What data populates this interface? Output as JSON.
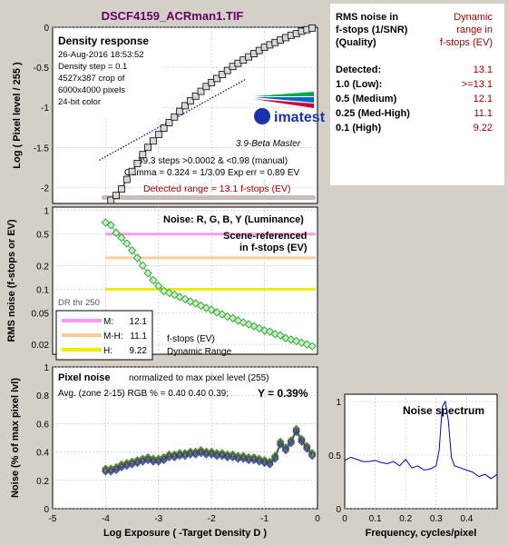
{
  "header": {
    "title": "DSCF4159_ACRman1.TIF"
  },
  "colors": {
    "background": "#d4d0c8",
    "title": "#660066",
    "maroon": "#990000",
    "blue": "#0000cc",
    "pink": "#ff99ee",
    "peach": "#ffcc99",
    "yellow": "#eeee00",
    "green": "#33aa33",
    "scene_line": "#44aa88",
    "detected_band": "#ccbbbb"
  },
  "summary_panel": {
    "left_heading": [
      "RMS noise in",
      "f-stops (1/SNR)",
      "(Quality)"
    ],
    "right_heading": [
      "Dynamic",
      "range in",
      "f-stops (EV)"
    ],
    "rows": [
      {
        "label": "Detected:",
        "value": "13.1"
      },
      {
        "label": "1.0  (Low):",
        "value": ">=13.1"
      },
      {
        "label": "0.5  (Medium)",
        "value": "12.1"
      },
      {
        "label": "0.25 (Med-High)",
        "value": "11.1"
      },
      {
        "label": "0.1  (High)",
        "value": "9.22"
      }
    ]
  },
  "density_chart": {
    "box_title": "Density response",
    "info_lines": [
      "26-Aug-2016 18:53:52",
      "Density step = 0.1",
      "4527x387 crop of",
      "6000x4000 pixels",
      "24-bit color"
    ],
    "logo_text": "imatest",
    "version": "3.9-Beta  Master",
    "stats_line1": "39.3 steps >0.0002 & <0.98 (manual)",
    "stats_line2": "Gamma = 0.324 = 1/3.09  Exp err = 0.89 EV",
    "detected_label": "Detected range = 13.1 f-stops (EV)",
    "ylabel": "Log ( Pixel level / 255 )",
    "yticks": [
      "0",
      "-0.5",
      "-1",
      "-1.5",
      "-2"
    ],
    "type": "line"
  },
  "noise_chart": {
    "box_title": "Noise: R, G, B, Y (Luminance)",
    "scene_label_1": "Scene-referenced",
    "scene_label_2": "in f-stops (EV)",
    "ylabel": "RMS noise (f-stops or EV)",
    "yticks": [
      "1",
      "0.5",
      "0.2",
      "0.1",
      "0.05",
      "0.02"
    ],
    "dr_thr": "DR thr 250",
    "legend": [
      {
        "key": "M:",
        "value": "12.1"
      },
      {
        "key": "M-H:",
        "value": "11.1"
      },
      {
        "key": "H:",
        "value": "9.22"
      }
    ],
    "legend_note_1": "f-stops (EV)",
    "legend_note_2": "Dynamic Range",
    "type": "line"
  },
  "pixel_chart": {
    "box_title": "Pixel noise",
    "note": "normalized to max pixel level (255)",
    "avg_line": "Avg. (zone 2-15) RGB % = 0.40  0.40  0.39;",
    "y_value": "Y = 0.39%",
    "ylabel": "Noise (% of max pixel lvl)",
    "xlabel": "Log Exposure ( -Target Density D )",
    "xticks": [
      "-5",
      "-4",
      "-3",
      "-2",
      "-1",
      "0"
    ],
    "yticks": [
      "0",
      "0.2",
      "0.4",
      "0.6",
      "0.8",
      "1"
    ],
    "type": "line"
  },
  "spectrum_chart": {
    "box_title": "Noise spectrum",
    "xlabel": "Frequency, cycles/pixel",
    "xticks": [
      "0",
      "0.1",
      "0.2",
      "0.3",
      "0.4"
    ],
    "yticks": [
      "1",
      "0.5",
      "0"
    ],
    "type": "line"
  },
  "chart_data": [
    {
      "type": "line",
      "name": "density_response",
      "xlim": [
        -5,
        0
      ],
      "ylim": [
        -2.2,
        0
      ],
      "x": [
        -3.9,
        -3.8,
        -3.7,
        -3.6,
        -3.5,
        -3.4,
        -3.3,
        -3.2,
        -3.1,
        -3.0,
        -2.9,
        -2.8,
        -2.7,
        -2.6,
        -2.5,
        -2.4,
        -2.3,
        -2.2,
        -2.1,
        -2.0,
        -1.9,
        -1.8,
        -1.7,
        -1.6,
        -1.5,
        -1.4,
        -1.3,
        -1.2,
        -1.1,
        -1.0,
        -0.9,
        -0.8,
        -0.7,
        -0.6,
        -0.5,
        -0.4,
        -0.3,
        -0.2,
        -0.1
      ],
      "y": [
        -2.16,
        -2.1,
        -2.02,
        -1.9,
        -1.8,
        -1.7,
        -1.59,
        -1.5,
        -1.42,
        -1.34,
        -1.26,
        -1.19,
        -1.12,
        -1.05,
        -0.98,
        -0.92,
        -0.86,
        -0.8,
        -0.74,
        -0.69,
        -0.64,
        -0.59,
        -0.54,
        -0.49,
        -0.45,
        -0.41,
        -0.37,
        -0.33,
        -0.29,
        -0.25,
        -0.22,
        -0.19,
        -0.16,
        -0.13,
        -0.1,
        -0.08,
        -0.05,
        -0.03,
        -0.01
      ],
      "detected_range_ev": 13.1
    },
    {
      "type": "line",
      "name": "rms_noise",
      "log_y": true,
      "ylim": [
        0.015,
        1.1
      ],
      "x": [
        -4.0,
        -3.9,
        -3.8,
        -3.7,
        -3.6,
        -3.5,
        -3.4,
        -3.3,
        -3.2,
        -3.1,
        -3.0,
        -2.9,
        -2.8,
        -2.7,
        -2.6,
        -2.5,
        -2.4,
        -2.3,
        -2.2,
        -2.1,
        -2.0,
        -1.9,
        -1.8,
        -1.7,
        -1.6,
        -1.5,
        -1.4,
        -1.3,
        -1.2,
        -1.1,
        -1.0,
        -0.9,
        -0.8,
        -0.7,
        -0.6,
        -0.5,
        -0.4,
        -0.3,
        -0.2,
        -0.1
      ],
      "y": [
        0.7,
        0.65,
        0.52,
        0.45,
        0.38,
        0.31,
        0.25,
        0.2,
        0.16,
        0.13,
        0.11,
        0.095,
        0.09,
        0.085,
        0.08,
        0.075,
        0.07,
        0.066,
        0.062,
        0.058,
        0.055,
        0.051,
        0.048,
        0.045,
        0.043,
        0.04,
        0.038,
        0.036,
        0.034,
        0.032,
        0.03,
        0.029,
        0.027,
        0.026,
        0.024,
        0.023,
        0.022,
        0.021,
        0.02,
        0.019
      ],
      "scene_levels": [
        0.5,
        0.25,
        0.1
      ],
      "legend": [
        {
          "name": "M",
          "value": 12.1
        },
        {
          "name": "M-H",
          "value": 11.1
        },
        {
          "name": "H",
          "value": 9.22
        }
      ]
    },
    {
      "type": "line",
      "name": "pixel_noise",
      "xlim": [
        -5,
        0
      ],
      "ylim": [
        0,
        1
      ],
      "x": [
        -4.0,
        -3.9,
        -3.8,
        -3.7,
        -3.6,
        -3.5,
        -3.4,
        -3.3,
        -3.2,
        -3.1,
        -3.0,
        -2.9,
        -2.8,
        -2.7,
        -2.6,
        -2.5,
        -2.4,
        -2.3,
        -2.2,
        -2.1,
        -2.0,
        -1.9,
        -1.8,
        -1.7,
        -1.6,
        -1.5,
        -1.4,
        -1.3,
        -1.2,
        -1.1,
        -1.0,
        -0.9,
        -0.8,
        -0.7,
        -0.6,
        -0.5,
        -0.4,
        -0.3,
        -0.2,
        -0.1
      ],
      "y": [
        0.27,
        0.27,
        0.28,
        0.3,
        0.31,
        0.32,
        0.33,
        0.34,
        0.35,
        0.34,
        0.34,
        0.35,
        0.37,
        0.37,
        0.38,
        0.38,
        0.39,
        0.39,
        0.4,
        0.39,
        0.39,
        0.38,
        0.38,
        0.37,
        0.37,
        0.36,
        0.36,
        0.35,
        0.35,
        0.34,
        0.33,
        0.32,
        0.36,
        0.46,
        0.42,
        0.47,
        0.55,
        0.48,
        0.43,
        0.38
      ],
      "avg_rgb": [
        0.4,
        0.4,
        0.39
      ],
      "y_avg": 0.39
    },
    {
      "type": "line",
      "name": "noise_spectrum",
      "xlim": [
        0,
        0.5
      ],
      "ylim": [
        0,
        1
      ],
      "x": [
        0,
        0.02,
        0.04,
        0.06,
        0.08,
        0.1,
        0.12,
        0.14,
        0.16,
        0.18,
        0.2,
        0.22,
        0.24,
        0.26,
        0.28,
        0.3,
        0.31,
        0.32,
        0.33,
        0.34,
        0.35,
        0.36,
        0.38,
        0.4,
        0.42,
        0.44,
        0.46,
        0.48,
        0.5
      ],
      "y": [
        0.45,
        0.48,
        0.46,
        0.44,
        0.44,
        0.45,
        0.43,
        0.42,
        0.44,
        0.4,
        0.46,
        0.38,
        0.4,
        0.36,
        0.37,
        0.4,
        0.55,
        0.95,
        1.0,
        0.82,
        0.48,
        0.4,
        0.38,
        0.36,
        0.34,
        0.3,
        0.32,
        0.28,
        0.32
      ]
    }
  ]
}
